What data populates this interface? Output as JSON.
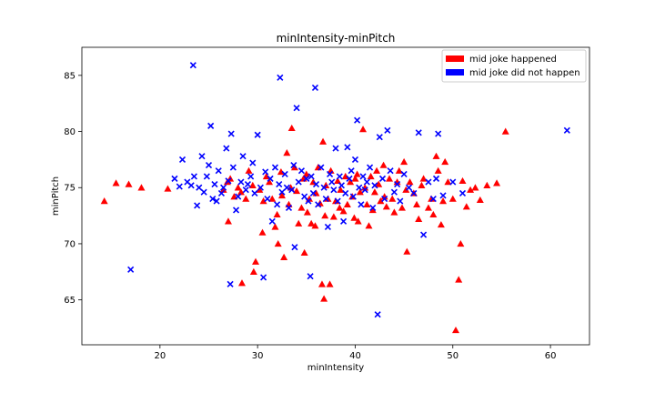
{
  "chart_data": {
    "type": "scatter",
    "title": "minIntensity-minPitch",
    "xlabel": "minIntensity",
    "ylabel": "minPitch",
    "xlim": [
      12,
      64
    ],
    "ylim": [
      61,
      87.5
    ],
    "xticks": [
      20,
      30,
      40,
      50,
      60
    ],
    "yticks": [
      65,
      70,
      75,
      80,
      85
    ],
    "grid": false,
    "legend_position": "top-right",
    "series": [
      {
        "name": "mid joke happened",
        "color": "#ff0000",
        "marker": "triangle",
        "points": [
          [
            14.3,
            73.8
          ],
          [
            15.5,
            75.4
          ],
          [
            16.8,
            75.3
          ],
          [
            18.1,
            75.0
          ],
          [
            20.8,
            74.9
          ],
          [
            26.5,
            74.8
          ],
          [
            26.9,
            75.5
          ],
          [
            27.0,
            72.0
          ],
          [
            27.2,
            75.8
          ],
          [
            27.6,
            74.2
          ],
          [
            28.0,
            75.0
          ],
          [
            28.3,
            74.6
          ],
          [
            28.4,
            66.5
          ],
          [
            28.8,
            74.0
          ],
          [
            29.1,
            76.5
          ],
          [
            29.5,
            75.2
          ],
          [
            29.6,
            67.5
          ],
          [
            29.8,
            68.4
          ],
          [
            30.2,
            74.8
          ],
          [
            30.5,
            71.0
          ],
          [
            30.6,
            73.8
          ],
          [
            30.9,
            76.0
          ],
          [
            31.2,
            75.5
          ],
          [
            31.5,
            74.0
          ],
          [
            31.8,
            71.5
          ],
          [
            32.0,
            72.6
          ],
          [
            32.1,
            70.0
          ],
          [
            32.4,
            76.4
          ],
          [
            32.5,
            74.3
          ],
          [
            32.7,
            68.8
          ],
          [
            33.0,
            78.1
          ],
          [
            33.2,
            73.5
          ],
          [
            33.4,
            75.0
          ],
          [
            33.5,
            80.3
          ],
          [
            33.8,
            76.8
          ],
          [
            34.0,
            74.7
          ],
          [
            34.2,
            71.8
          ],
          [
            34.5,
            73.2
          ],
          [
            34.7,
            75.8
          ],
          [
            34.8,
            69.2
          ],
          [
            35.0,
            76.2
          ],
          [
            35.1,
            72.8
          ],
          [
            35.3,
            74.0
          ],
          [
            35.5,
            71.8
          ],
          [
            35.7,
            75.5
          ],
          [
            35.9,
            71.6
          ],
          [
            36.0,
            74.5
          ],
          [
            36.2,
            76.8
          ],
          [
            36.4,
            73.6
          ],
          [
            36.6,
            66.4
          ],
          [
            36.7,
            79.1
          ],
          [
            36.8,
            65.1
          ],
          [
            36.9,
            72.5
          ],
          [
            37.0,
            75.2
          ],
          [
            37.2,
            74.0
          ],
          [
            37.4,
            66.4
          ],
          [
            37.5,
            76.5
          ],
          [
            37.8,
            72.4
          ],
          [
            38.0,
            73.8
          ],
          [
            38.2,
            75.6
          ],
          [
            38.4,
            73.2
          ],
          [
            38.5,
            74.8
          ],
          [
            38.8,
            72.9
          ],
          [
            39.0,
            76.0
          ],
          [
            39.2,
            73.5
          ],
          [
            39.5,
            75.5
          ],
          [
            39.7,
            74.2
          ],
          [
            39.9,
            72.3
          ],
          [
            40.0,
            75.8
          ],
          [
            40.2,
            76.2
          ],
          [
            40.3,
            72.0
          ],
          [
            40.5,
            74.6
          ],
          [
            40.8,
            80.2
          ],
          [
            41.0,
            75.0
          ],
          [
            41.2,
            73.5
          ],
          [
            41.4,
            71.6
          ],
          [
            41.6,
            76.0
          ],
          [
            41.8,
            73.0
          ],
          [
            42.0,
            74.6
          ],
          [
            42.2,
            76.5
          ],
          [
            42.4,
            75.3
          ],
          [
            42.6,
            73.8
          ],
          [
            42.9,
            77.0
          ],
          [
            43.0,
            74.2
          ],
          [
            43.2,
            73.3
          ],
          [
            43.5,
            75.8
          ],
          [
            43.8,
            74.0
          ],
          [
            44.0,
            72.8
          ],
          [
            44.3,
            75.5
          ],
          [
            44.5,
            76.5
          ],
          [
            44.8,
            73.2
          ],
          [
            45.0,
            77.3
          ],
          [
            45.2,
            74.8
          ],
          [
            45.3,
            69.3
          ],
          [
            45.6,
            75.5
          ],
          [
            46.0,
            74.5
          ],
          [
            46.3,
            73.5
          ],
          [
            46.5,
            72.2
          ],
          [
            46.8,
            75.2
          ],
          [
            47.0,
            75.8
          ],
          [
            47.5,
            73.2
          ],
          [
            47.8,
            74.0
          ],
          [
            48.0,
            72.6
          ],
          [
            48.3,
            77.8
          ],
          [
            48.5,
            76.5
          ],
          [
            48.8,
            71.7
          ],
          [
            49.0,
            73.8
          ],
          [
            49.2,
            77.3
          ],
          [
            49.5,
            75.5
          ],
          [
            50.0,
            74.0
          ],
          [
            50.3,
            62.3
          ],
          [
            50.6,
            66.8
          ],
          [
            50.8,
            70.0
          ],
          [
            51.0,
            75.6
          ],
          [
            51.4,
            73.3
          ],
          [
            51.8,
            74.8
          ],
          [
            52.3,
            75.0
          ],
          [
            52.8,
            73.9
          ],
          [
            53.5,
            75.2
          ],
          [
            54.5,
            75.4
          ],
          [
            55.4,
            80.0
          ]
        ]
      },
      {
        "name": "mid joke did not happen",
        "color": "#0000ff",
        "marker": "x",
        "points": [
          [
            17.0,
            67.7
          ],
          [
            21.5,
            75.8
          ],
          [
            22.0,
            75.1
          ],
          [
            22.3,
            77.5
          ],
          [
            22.8,
            75.5
          ],
          [
            23.2,
            75.2
          ],
          [
            23.4,
            85.9
          ],
          [
            23.5,
            76.0
          ],
          [
            23.8,
            73.4
          ],
          [
            24.0,
            75.0
          ],
          [
            24.3,
            77.8
          ],
          [
            24.5,
            74.6
          ],
          [
            24.8,
            76.0
          ],
          [
            25.0,
            77.0
          ],
          [
            25.2,
            80.5
          ],
          [
            25.4,
            74.0
          ],
          [
            25.6,
            75.3
          ],
          [
            25.8,
            73.8
          ],
          [
            26.0,
            76.5
          ],
          [
            26.3,
            74.5
          ],
          [
            26.5,
            75.0
          ],
          [
            26.8,
            78.5
          ],
          [
            27.0,
            75.6
          ],
          [
            27.2,
            66.4
          ],
          [
            27.3,
            79.8
          ],
          [
            27.5,
            76.8
          ],
          [
            27.8,
            73.0
          ],
          [
            28.0,
            74.2
          ],
          [
            28.3,
            75.5
          ],
          [
            28.5,
            77.8
          ],
          [
            28.8,
            74.8
          ],
          [
            29.0,
            75.3
          ],
          [
            29.3,
            76.0
          ],
          [
            29.5,
            77.2
          ],
          [
            29.7,
            74.5
          ],
          [
            30.0,
            79.7
          ],
          [
            30.3,
            75.0
          ],
          [
            30.6,
            67.0
          ],
          [
            30.8,
            76.4
          ],
          [
            31.0,
            74.0
          ],
          [
            31.3,
            75.8
          ],
          [
            31.5,
            72.0
          ],
          [
            31.8,
            76.8
          ],
          [
            32.0,
            73.5
          ],
          [
            32.2,
            75.3
          ],
          [
            32.3,
            84.8
          ],
          [
            32.5,
            74.6
          ],
          [
            32.8,
            76.2
          ],
          [
            33.0,
            75.0
          ],
          [
            33.2,
            73.2
          ],
          [
            33.5,
            74.8
          ],
          [
            33.7,
            77.0
          ],
          [
            33.8,
            69.7
          ],
          [
            34.0,
            82.1
          ],
          [
            34.2,
            75.5
          ],
          [
            34.5,
            76.5
          ],
          [
            34.8,
            74.2
          ],
          [
            35.0,
            75.8
          ],
          [
            35.2,
            73.8
          ],
          [
            35.4,
            67.1
          ],
          [
            35.5,
            76.0
          ],
          [
            35.7,
            74.5
          ],
          [
            35.9,
            83.9
          ],
          [
            36.0,
            75.3
          ],
          [
            36.2,
            73.5
          ],
          [
            36.5,
            76.8
          ],
          [
            36.8,
            75.0
          ],
          [
            37.0,
            74.0
          ],
          [
            37.2,
            71.5
          ],
          [
            37.4,
            76.2
          ],
          [
            37.6,
            75.5
          ],
          [
            37.8,
            74.8
          ],
          [
            38.0,
            78.5
          ],
          [
            38.2,
            73.8
          ],
          [
            38.4,
            76.0
          ],
          [
            38.6,
            75.2
          ],
          [
            38.8,
            72.0
          ],
          [
            39.0,
            74.5
          ],
          [
            39.2,
            78.6
          ],
          [
            39.4,
            75.8
          ],
          [
            39.6,
            76.5
          ],
          [
            39.8,
            74.2
          ],
          [
            40.0,
            77.5
          ],
          [
            40.2,
            81.0
          ],
          [
            40.4,
            75.0
          ],
          [
            40.6,
            73.5
          ],
          [
            40.8,
            76.0
          ],
          [
            41.0,
            74.8
          ],
          [
            41.2,
            75.5
          ],
          [
            41.5,
            76.8
          ],
          [
            41.8,
            73.2
          ],
          [
            42.0,
            75.2
          ],
          [
            42.3,
            63.7
          ],
          [
            42.5,
            79.5
          ],
          [
            42.8,
            75.8
          ],
          [
            43.0,
            74.0
          ],
          [
            43.3,
            80.1
          ],
          [
            43.6,
            76.5
          ],
          [
            44.0,
            74.6
          ],
          [
            44.3,
            75.3
          ],
          [
            44.6,
            73.8
          ],
          [
            45.0,
            76.2
          ],
          [
            45.5,
            75.0
          ],
          [
            46.0,
            74.5
          ],
          [
            46.5,
            79.9
          ],
          [
            47.0,
            70.8
          ],
          [
            47.5,
            75.5
          ],
          [
            48.0,
            74.0
          ],
          [
            48.3,
            75.8
          ],
          [
            48.5,
            79.8
          ],
          [
            49.0,
            74.3
          ],
          [
            50.0,
            75.5
          ],
          [
            51.0,
            74.5
          ],
          [
            61.7,
            80.1
          ]
        ]
      }
    ]
  }
}
